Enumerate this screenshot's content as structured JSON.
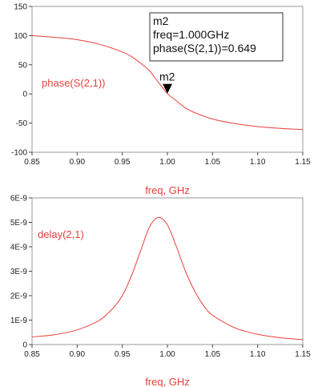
{
  "colors": {
    "trace": "#e8403a",
    "frame": "#999999",
    "text": "#222222"
  },
  "chart_data": [
    {
      "type": "line",
      "series": [
        {
          "name": "phase(S(2,1))",
          "x": [
            0.85,
            0.875,
            0.9,
            0.925,
            0.95,
            0.96,
            0.97,
            0.98,
            0.99,
            1.0,
            1.01,
            1.02,
            1.03,
            1.05,
            1.075,
            1.1,
            1.125,
            1.15
          ],
          "y": [
            100,
            97,
            93,
            85,
            72,
            64,
            53,
            40,
            20,
            0.649,
            -12,
            -24,
            -32,
            -43,
            -51,
            -56,
            -59,
            -61
          ]
        }
      ],
      "xlabel": "freq, GHz",
      "xlim": [
        0.85,
        1.15
      ],
      "ylim": [
        -100,
        150
      ],
      "xticks": [
        "0.85",
        "0.90",
        "0.95",
        "1.00",
        "1.05",
        "1.10",
        "1.15"
      ],
      "yticks": [
        "-100",
        "-50",
        "0",
        "50",
        "100",
        "150"
      ],
      "grid": false,
      "marker": {
        "name": "m2",
        "x": 1.0,
        "y": 0.649,
        "readout": [
          "m2",
          "freq=1.000GHz",
          "phase(S(2,1))=0.649"
        ]
      }
    },
    {
      "type": "line",
      "series": [
        {
          "name": "delay(2,1)",
          "x": [
            0.85,
            0.875,
            0.9,
            0.925,
            0.94,
            0.95,
            0.96,
            0.97,
            0.98,
            0.99,
            1.0,
            1.01,
            1.02,
            1.03,
            1.04,
            1.05,
            1.075,
            1.1,
            1.125,
            1.15
          ],
          "y": [
            3.1e-10,
            4e-10,
            6e-10,
            1e-09,
            1.5e-09,
            2e-09,
            2.8e-09,
            3.8e-09,
            4.8e-09,
            5.2e-09,
            4.9e-09,
            4e-09,
            3e-09,
            2.2e-09,
            1.6e-09,
            1.2e-09,
            6.8e-10,
            4.2e-10,
            2.8e-10,
            2e-10
          ]
        }
      ],
      "xlabel": "freq, GHz",
      "xlim": [
        0.85,
        1.15
      ],
      "ylim": [
        0,
        6e-09
      ],
      "xticks": [
        "0.85",
        "0.90",
        "0.95",
        "1.00",
        "1.05",
        "1.10",
        "1.15"
      ],
      "yticks": [
        "0",
        "1E-9",
        "2E-9",
        "3E-9",
        "4E-9",
        "5E-9",
        "6E-9"
      ],
      "grid": false
    }
  ]
}
